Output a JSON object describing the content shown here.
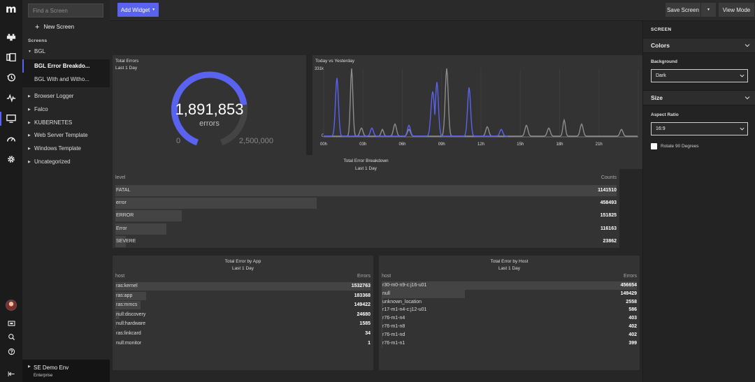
{
  "brand": {
    "logo": "m"
  },
  "rail": {
    "icons": [
      "pipeline-icon",
      "dashboard-cards-icon",
      "history-icon",
      "pulse-icon",
      "screen-icon",
      "speedometer-icon",
      "gear-icon"
    ],
    "bottom": [
      "display-icon",
      "search-icon",
      "help-icon",
      "collapse-icon"
    ]
  },
  "sidebar": {
    "search_placeholder": "Find a Screen",
    "new_screen": "New Screen",
    "screens_heading": "Screens",
    "group_open": "BGL",
    "group_children": [
      "BGL Error Breakdo...",
      "BGL With and Witho..."
    ],
    "groups": [
      "Browser Logger",
      "Falco",
      "KUBERNETES",
      "Web Server Template",
      "Windows Template",
      "Uncategorized"
    ],
    "env_name": "SE Demo Env",
    "env_sub": "Enterprise"
  },
  "topbar": {
    "add_widget": "Add Widget",
    "save_screen": "Save Screen",
    "view_mode": "View Mode"
  },
  "gauge": {
    "title": "Total Errors",
    "subtitle": "Last 1 Day",
    "value_text": "1,891,853",
    "unit": "errors",
    "min": "0",
    "max": "2,500,000",
    "value": 1891853,
    "max_value": 2500000,
    "color": "#5a63f0"
  },
  "timeseries": {
    "title": "Today vs Yesterday",
    "ytop": "331k",
    "ybottom": "0",
    "xticks": [
      "00h",
      "03h",
      "06h",
      "09h",
      "12h",
      "15h",
      "18h",
      "21h"
    ],
    "colors": {
      "today": "#5a63f0",
      "yesterday": "#8d8d8d"
    }
  },
  "breakdown": {
    "title": "Total Error Breakdown",
    "subtitle": "Last 1 Day",
    "col1": "level",
    "col2": "Counts",
    "rows": [
      {
        "label": "FATAL",
        "value": "1141510",
        "n": 1141510
      },
      {
        "label": "error",
        "value": "458493",
        "n": 458493
      },
      {
        "label": "ERROR",
        "value": "151825",
        "n": 151825
      },
      {
        "label": "Error",
        "value": "116163",
        "n": 116163
      },
      {
        "label": "SEVERE",
        "value": "23862",
        "n": 23862
      }
    ]
  },
  "by_app": {
    "title": "Total Error by App",
    "subtitle": "Last 1 Day",
    "col1": "host",
    "col2": "Errors",
    "rows": [
      {
        "label": "ras:kernel",
        "value": "1532763",
        "n": 1532763
      },
      {
        "label": "ras:app",
        "value": "183368",
        "n": 183368
      },
      {
        "label": "ras:mmcs",
        "value": "149422",
        "n": 149422
      },
      {
        "label": "null:discovery",
        "value": "24680",
        "n": 24680
      },
      {
        "label": "null:hardware",
        "value": "1585",
        "n": 1585
      },
      {
        "label": "ras:linkcard",
        "value": "34",
        "n": 34
      },
      {
        "label": "null:monitor",
        "value": "1",
        "n": 1
      }
    ]
  },
  "by_host": {
    "title": "Total Error by Host",
    "subtitle": "Last 1 Day",
    "col1": "host",
    "col2": "Errors",
    "rows": [
      {
        "label": "r30-m0-n9-c:j16-u01",
        "value": "456654",
        "n": 456654
      },
      {
        "label": "null",
        "value": "149429",
        "n": 149429
      },
      {
        "label": "unknown_location",
        "value": "2558",
        "n": 2558
      },
      {
        "label": "r17-m1-n4-c:j12-u01",
        "value": "586",
        "n": 586
      },
      {
        "label": "r76-m1-n4",
        "value": "403",
        "n": 403
      },
      {
        "label": "r76-m1-n8",
        "value": "402",
        "n": 402
      },
      {
        "label": "r76-m1-nd",
        "value": "402",
        "n": 402
      },
      {
        "label": "r76-m1-n1",
        "value": "399",
        "n": 399
      }
    ]
  },
  "settings": {
    "heading": "SCREEN",
    "colors_section": "Colors",
    "background_label": "Background",
    "background_value": "Dark",
    "size_section": "Size",
    "aspect_label": "Aspect Ratio",
    "aspect_value": "16:9",
    "rotate_label": "Rotate 90 Degrees"
  }
}
